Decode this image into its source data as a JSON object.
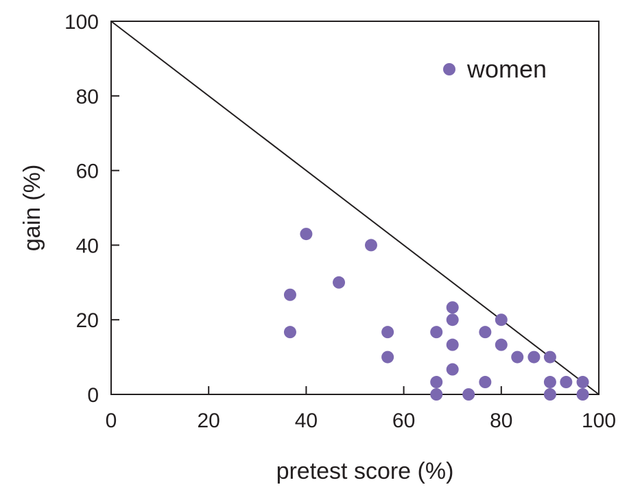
{
  "chart_data": {
    "type": "scatter",
    "xlabel": "pretest score (%)",
    "ylabel": "gain (%)",
    "xlim": [
      0,
      100
    ],
    "ylim": [
      0,
      100
    ],
    "x_ticks": [
      "0",
      "20",
      "40",
      "60",
      "80",
      "100"
    ],
    "y_ticks": [
      "0",
      "20",
      "40",
      "60",
      "80",
      "100"
    ],
    "grid": false,
    "legend_position": "top-right",
    "reference_line": {
      "from": [
        0,
        100
      ],
      "to": [
        100,
        0
      ]
    },
    "series": [
      {
        "name": "women",
        "color": "#7b68b0",
        "points": [
          [
            40,
            43
          ],
          [
            53.3,
            40
          ],
          [
            46.7,
            30
          ],
          [
            36.7,
            26.7
          ],
          [
            36.7,
            16.7
          ],
          [
            56.7,
            16.7
          ],
          [
            56.7,
            10
          ],
          [
            70,
            23.3
          ],
          [
            70,
            20
          ],
          [
            66.7,
            16.7
          ],
          [
            76.7,
            16.7
          ],
          [
            80,
            20
          ],
          [
            70,
            13.3
          ],
          [
            80,
            13.3
          ],
          [
            83.3,
            10
          ],
          [
            86.7,
            10
          ],
          [
            90,
            10
          ],
          [
            70,
            6.7
          ],
          [
            66.7,
            3.3
          ],
          [
            76.7,
            3.3
          ],
          [
            90,
            3.3
          ],
          [
            93.3,
            3.3
          ],
          [
            96.7,
            3.3
          ],
          [
            66.7,
            0
          ],
          [
            73.3,
            0
          ],
          [
            90,
            0
          ],
          [
            96.7,
            0
          ]
        ]
      }
    ]
  }
}
